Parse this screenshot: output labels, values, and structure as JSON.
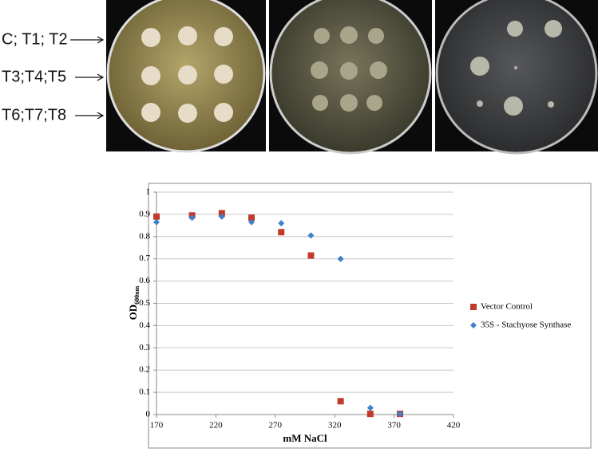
{
  "row_labels": [
    "C; T1; T2",
    "T3;T4;T5",
    "T6;T7;T8"
  ],
  "chart_data": {
    "type": "scatter",
    "x": [
      170,
      200,
      225,
      250,
      275,
      300,
      325,
      350,
      375
    ],
    "series": [
      {
        "name": "Vector Control",
        "color": "#c0392b",
        "marker": "square",
        "values": [
          0.89,
          0.895,
          0.905,
          0.885,
          0.82,
          0.715,
          0.06,
          0.003,
          0.003
        ]
      },
      {
        "name": "35S - Stachyose Synthase",
        "color": "#3f7fd0",
        "marker": "diamond",
        "values": [
          0.865,
          0.885,
          0.89,
          0.865,
          0.86,
          0.805,
          0.7,
          0.03,
          0.003
        ]
      }
    ],
    "xlabel": "mM NaCl",
    "ylabel": "OD",
    "ylabel_sub": "600nm",
    "xlim": [
      170,
      420
    ],
    "xticks": [
      170,
      220,
      270,
      320,
      370,
      420
    ],
    "ylim": [
      0,
      1
    ],
    "yticks": [
      0,
      0.1,
      0.2,
      0.3,
      0.4,
      0.5,
      0.6,
      0.7,
      0.8,
      0.9,
      1
    ],
    "grid": true,
    "legend": "right"
  }
}
